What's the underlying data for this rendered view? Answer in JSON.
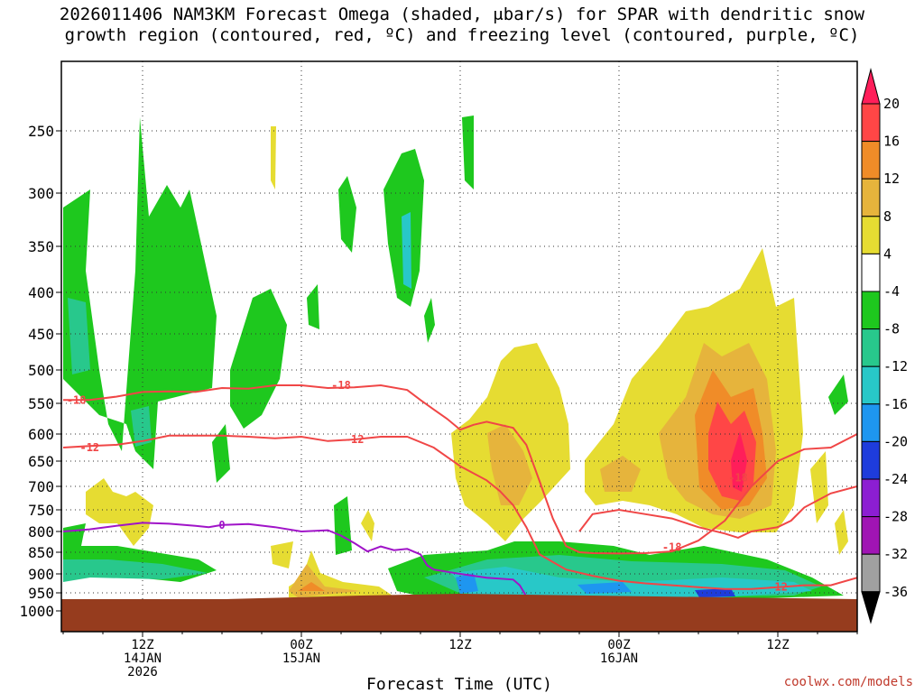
{
  "chart_data": {
    "type": "contour",
    "title_line1": "2026011406 NAM3KM Forecast Omega (shaded, μbar/s) for SPAR with dendritic snow",
    "title_line2": "growth region (contoured, red, ºC) and freezing level (contoured, purple, ºC)",
    "xlabel": "Forecast Time (UTC)",
    "credit": "coolwx.com/models",
    "x_ticks": [
      {
        "hour": 6,
        "lines": [
          "12Z",
          "14JAN",
          "2026"
        ]
      },
      {
        "hour": 18,
        "lines": [
          "00Z",
          "15JAN"
        ]
      },
      {
        "hour": 30,
        "lines": [
          "12Z"
        ]
      },
      {
        "hour": 42,
        "lines": [
          "00Z",
          "16JAN"
        ]
      },
      {
        "hour": 54,
        "lines": [
          "12Z"
        ]
      }
    ],
    "xlim": [
      0,
      60
    ],
    "y_axis": "pressure (hPa), inverted",
    "y_ticks": [
      250,
      300,
      350,
      400,
      450,
      500,
      550,
      600,
      650,
      700,
      750,
      800,
      850,
      900,
      950,
      1000
    ],
    "colorbar": {
      "ticks": [
        "20",
        "16",
        "12",
        "8",
        "4",
        "-4",
        "-8",
        "-12",
        "-16",
        "-20",
        "-24",
        "-28",
        "-32",
        "-36"
      ],
      "colors": [
        "#ff1e5a",
        "#ff4646",
        "#f08c28",
        "#e6b43c",
        "#e6dc32",
        "#ffffff",
        "#1ec81e",
        "#28c88c",
        "#28c8c8",
        "#1e96f0",
        "#1e3cdc",
        "#8c1ed2",
        "#a014b4",
        "#a0a0a0",
        "#000000"
      ]
    },
    "contours": [
      {
        "name": "dendritic -18 ºC",
        "label": "-18",
        "color": "#f04646",
        "points": [
          [
            0,
            545
          ],
          [
            2,
            545
          ],
          [
            4,
            540
          ],
          [
            6,
            533
          ],
          [
            8,
            532
          ],
          [
            10,
            533
          ],
          [
            12,
            527
          ],
          [
            14,
            528
          ],
          [
            16,
            523
          ],
          [
            18,
            523
          ],
          [
            20,
            527
          ],
          [
            22,
            526
          ],
          [
            24,
            523
          ],
          [
            26,
            530
          ],
          [
            27,
            545
          ],
          [
            28,
            560
          ],
          [
            29,
            575
          ],
          [
            30,
            593
          ],
          [
            31,
            585
          ],
          [
            32,
            580
          ],
          [
            34,
            590
          ],
          [
            35,
            620
          ],
          [
            36,
            690
          ],
          [
            37,
            770
          ],
          [
            38,
            835
          ],
          [
            39,
            850
          ],
          [
            40,
            852
          ],
          [
            42,
            853
          ],
          [
            44,
            852
          ],
          [
            46,
            848
          ],
          [
            48,
            822
          ],
          [
            50,
            775
          ],
          [
            52,
            700
          ],
          [
            54,
            650
          ],
          [
            56,
            628
          ],
          [
            58,
            625
          ],
          [
            60,
            600
          ]
        ],
        "label_at": [
          [
            1,
            545
          ],
          [
            21,
            523
          ],
          [
            46,
            838
          ],
          [
            51,
            683
          ]
        ]
      },
      {
        "name": "dendritic -12 ºC",
        "label": "-12",
        "color": "#f04646",
        "points": [
          [
            0,
            625
          ],
          [
            2,
            622
          ],
          [
            4,
            620
          ],
          [
            6,
            613
          ],
          [
            8,
            603
          ],
          [
            10,
            603
          ],
          [
            12,
            603
          ],
          [
            14,
            605
          ],
          [
            16,
            608
          ],
          [
            18,
            605
          ],
          [
            20,
            613
          ],
          [
            22,
            610
          ],
          [
            24,
            605
          ],
          [
            26,
            605
          ],
          [
            28,
            625
          ],
          [
            30,
            660
          ],
          [
            32,
            688
          ],
          [
            33,
            710
          ],
          [
            34,
            740
          ],
          [
            35,
            790
          ],
          [
            36,
            855
          ],
          [
            38,
            890
          ],
          [
            40,
            905
          ],
          [
            42,
            918
          ],
          [
            44,
            925
          ],
          [
            46,
            930
          ],
          [
            48,
            935
          ],
          [
            50,
            940
          ],
          [
            52,
            940
          ],
          [
            54,
            935
          ],
          [
            56,
            930
          ],
          [
            58,
            930
          ],
          [
            60,
            910
          ]
        ],
        "label_at": [
          [
            2,
            625
          ],
          [
            22,
            610
          ],
          [
            54,
            935
          ]
        ]
      },
      {
        "name": "-18 lower branch",
        "label": "",
        "color": "#f04646",
        "points": [
          [
            39,
            800
          ],
          [
            40,
            760
          ],
          [
            42,
            750
          ],
          [
            44,
            760
          ],
          [
            46,
            770
          ],
          [
            48,
            790
          ],
          [
            50,
            805
          ],
          [
            51,
            815
          ],
          [
            52,
            800
          ],
          [
            54,
            790
          ],
          [
            55,
            775
          ],
          [
            56,
            745
          ],
          [
            58,
            715
          ],
          [
            60,
            700
          ]
        ],
        "label_at": []
      },
      {
        "name": "freezing level 0 ºC",
        "label": "0",
        "color": "#a014c8",
        "points": [
          [
            0,
            800
          ],
          [
            2,
            795
          ],
          [
            4,
            787
          ],
          [
            6,
            780
          ],
          [
            8,
            782
          ],
          [
            10,
            787
          ],
          [
            11,
            790
          ],
          [
            12,
            785
          ],
          [
            14,
            783
          ],
          [
            16,
            790
          ],
          [
            18,
            800
          ],
          [
            20,
            797
          ],
          [
            21,
            810
          ],
          [
            22,
            828
          ],
          [
            23,
            848
          ],
          [
            24,
            836
          ],
          [
            25,
            845
          ],
          [
            26,
            842
          ],
          [
            27,
            855
          ],
          [
            27.5,
            880
          ],
          [
            28,
            890
          ],
          [
            30,
            900
          ],
          [
            31,
            905
          ],
          [
            32,
            910
          ],
          [
            34,
            915
          ],
          [
            34.5,
            930
          ],
          [
            35,
            960
          ]
        ],
        "label_at": [
          [
            12,
            785
          ]
        ]
      }
    ]
  }
}
